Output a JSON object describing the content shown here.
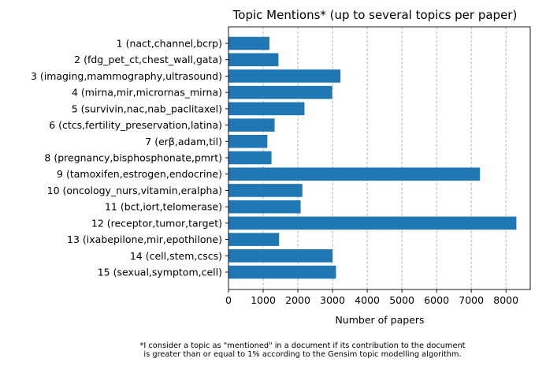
{
  "chart_data": {
    "type": "bar",
    "orientation": "horizontal",
    "title": "Topic Mentions* (up to several topics per paper)",
    "xlabel": "Number of papers",
    "ylabel": "",
    "xlim": [
      0,
      8700
    ],
    "xticks": [
      0,
      1000,
      2000,
      3000,
      4000,
      5000,
      6000,
      7000,
      8000
    ],
    "xtick_labels": [
      "0",
      "1000",
      "2000",
      "3000",
      "4000",
      "5000",
      "6000",
      "7000",
      "8000"
    ],
    "grid": "x-axis dashed",
    "bar_color": "#1f77b4",
    "grid_color": "#b0b0b0",
    "categories": [
      "1 (nact,channel,bcrp)",
      "2 (fdg_pet_ct,chest_wall,gata)",
      "3 (imaging,mammography,ultrasound)",
      "4 (mirna,mir,micrornas_mirna)",
      "5 (survivin,nac,nab_paclitaxel)",
      "6 (ctcs,fertility_preservation,latina)",
      "7 (erβ,adam,til)",
      "8 (pregnancy,bisphosphonate,pmrt)",
      "9 (tamoxifen,estrogen,endocrine)",
      "10 (oncology_nurs,vitamin,eralpha)",
      "11 (bct,iort,telomerase)",
      "12 (receptor,tumor,target)",
      "13 (ixabepilone,mir,epothilone)",
      "14 (cell,stem,cscs)",
      "15 (sexual,symptom,cell)"
    ],
    "values": [
      1180,
      1440,
      3230,
      2990,
      2190,
      1330,
      1120,
      1240,
      7250,
      2130,
      2080,
      8300,
      1460,
      3000,
      3100
    ],
    "footnote_lines": [
      "*I consider a topic as \"mentioned\" in a document if its contribution to the document",
      "is greater than or equal to 1% according to the Gensim topic modelling algorithm."
    ]
  }
}
